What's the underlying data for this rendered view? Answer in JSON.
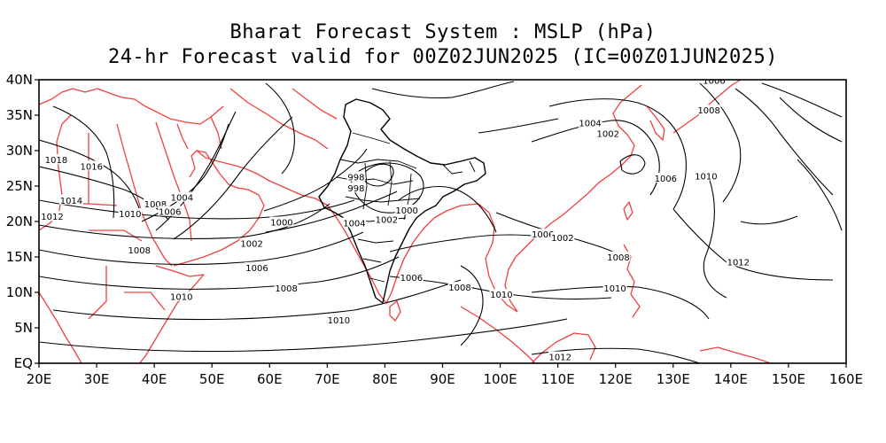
{
  "title": "Bharat Forecast System : MSLP (hPa)",
  "subtitle": "24-hr Forecast valid for 00Z02JUN2025 (IC=00Z01JUN2025)",
  "colors": {
    "contours": "#000000",
    "coastlines": "#f04040",
    "india_boundary": "#000000",
    "frame": "#000000"
  },
  "axes": {
    "x_ticks": [
      "20E",
      "30E",
      "40E",
      "50E",
      "60E",
      "70E",
      "80E",
      "90E",
      "100E",
      "110E",
      "120E",
      "130E",
      "140E",
      "150E",
      "160E"
    ],
    "y_ticks": [
      "40N",
      "35N",
      "30N",
      "25N",
      "20N",
      "15N",
      "10N",
      "5N",
      "EQ"
    ]
  },
  "contour_labels": [
    {
      "text": "1018",
      "lon": 23.0,
      "lat": 28.6
    },
    {
      "text": "1016",
      "lon": 29.1,
      "lat": 27.7
    },
    {
      "text": "1014",
      "lon": 25.6,
      "lat": 22.9
    },
    {
      "text": "1012",
      "lon": 22.3,
      "lat": 20.6
    },
    {
      "text": "1010",
      "lon": 35.8,
      "lat": 21.0
    },
    {
      "text": "1008",
      "lon": 40.2,
      "lat": 22.4
    },
    {
      "text": "1006",
      "lon": 42.7,
      "lat": 21.3
    },
    {
      "text": "1004",
      "lon": 44.8,
      "lat": 23.3
    },
    {
      "text": "1008",
      "lon": 37.4,
      "lat": 15.9
    },
    {
      "text": "1010",
      "lon": 44.7,
      "lat": 9.3
    },
    {
      "text": "1000",
      "lon": 62.1,
      "lat": 19.8
    },
    {
      "text": "1002",
      "lon": 56.9,
      "lat": 16.8
    },
    {
      "text": "1006",
      "lon": 57.8,
      "lat": 13.4
    },
    {
      "text": "1008",
      "lon": 62.9,
      "lat": 10.5
    },
    {
      "text": "1010",
      "lon": 72.0,
      "lat": 6.0
    },
    {
      "text": "998",
      "lon": 75.0,
      "lat": 26.2
    },
    {
      "text": "998",
      "lon": 75.0,
      "lat": 24.6
    },
    {
      "text": "1004",
      "lon": 74.7,
      "lat": 19.7
    },
    {
      "text": "1002",
      "lon": 80.3,
      "lat": 20.2
    },
    {
      "text": "1000",
      "lon": 83.8,
      "lat": 21.5
    },
    {
      "text": "1006",
      "lon": 84.6,
      "lat": 12.0
    },
    {
      "text": "1008",
      "lon": 93.0,
      "lat": 10.6
    },
    {
      "text": "1010",
      "lon": 100.2,
      "lat": 9.6
    },
    {
      "text": "1006",
      "lon": 107.4,
      "lat": 18.1
    },
    {
      "text": "1002",
      "lon": 110.8,
      "lat": 17.6
    },
    {
      "text": "1004",
      "lon": 115.6,
      "lat": 33.8
    },
    {
      "text": "1002",
      "lon": 118.7,
      "lat": 32.3
    },
    {
      "text": "1006",
      "lon": 128.7,
      "lat": 26.0
    },
    {
      "text": "1010",
      "lon": 135.7,
      "lat": 26.3
    },
    {
      "text": "1008",
      "lon": 136.2,
      "lat": 35.6
    },
    {
      "text": "1006",
      "lon": 137.1,
      "lat": 39.8
    },
    {
      "text": "1008",
      "lon": 120.5,
      "lat": 14.9
    },
    {
      "text": "1010",
      "lon": 119.9,
      "lat": 10.5
    },
    {
      "text": "1012",
      "lon": 141.3,
      "lat": 14.2
    },
    {
      "text": "1012",
      "lon": 110.4,
      "lat": 0.8
    }
  ]
}
